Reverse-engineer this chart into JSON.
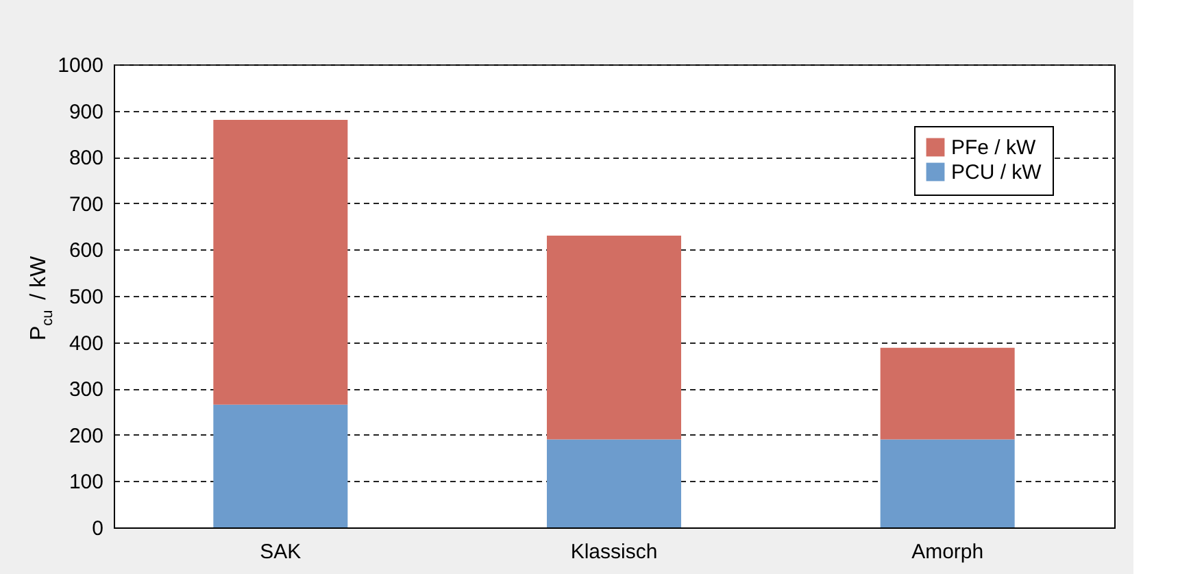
{
  "chart_data": {
    "type": "bar",
    "stacked": true,
    "ylabel": "P$_{cu}$ / kW",
    "categories": [
      "SAK",
      "Klassisch",
      "Amorph"
    ],
    "series": [
      {
        "name": "PCU / kW",
        "color": "#6d9ccd",
        "values": [
          265,
          190,
          190
        ]
      },
      {
        "name": "PFe / kW",
        "color": "#d26e63",
        "values": [
          615,
          440,
          198
        ]
      }
    ],
    "ylim": [
      0,
      1000
    ],
    "yticks": [
      0,
      100,
      200,
      300,
      400,
      500,
      600,
      700,
      800,
      900,
      1000
    ],
    "grid": "y",
    "legend": "top right"
  }
}
